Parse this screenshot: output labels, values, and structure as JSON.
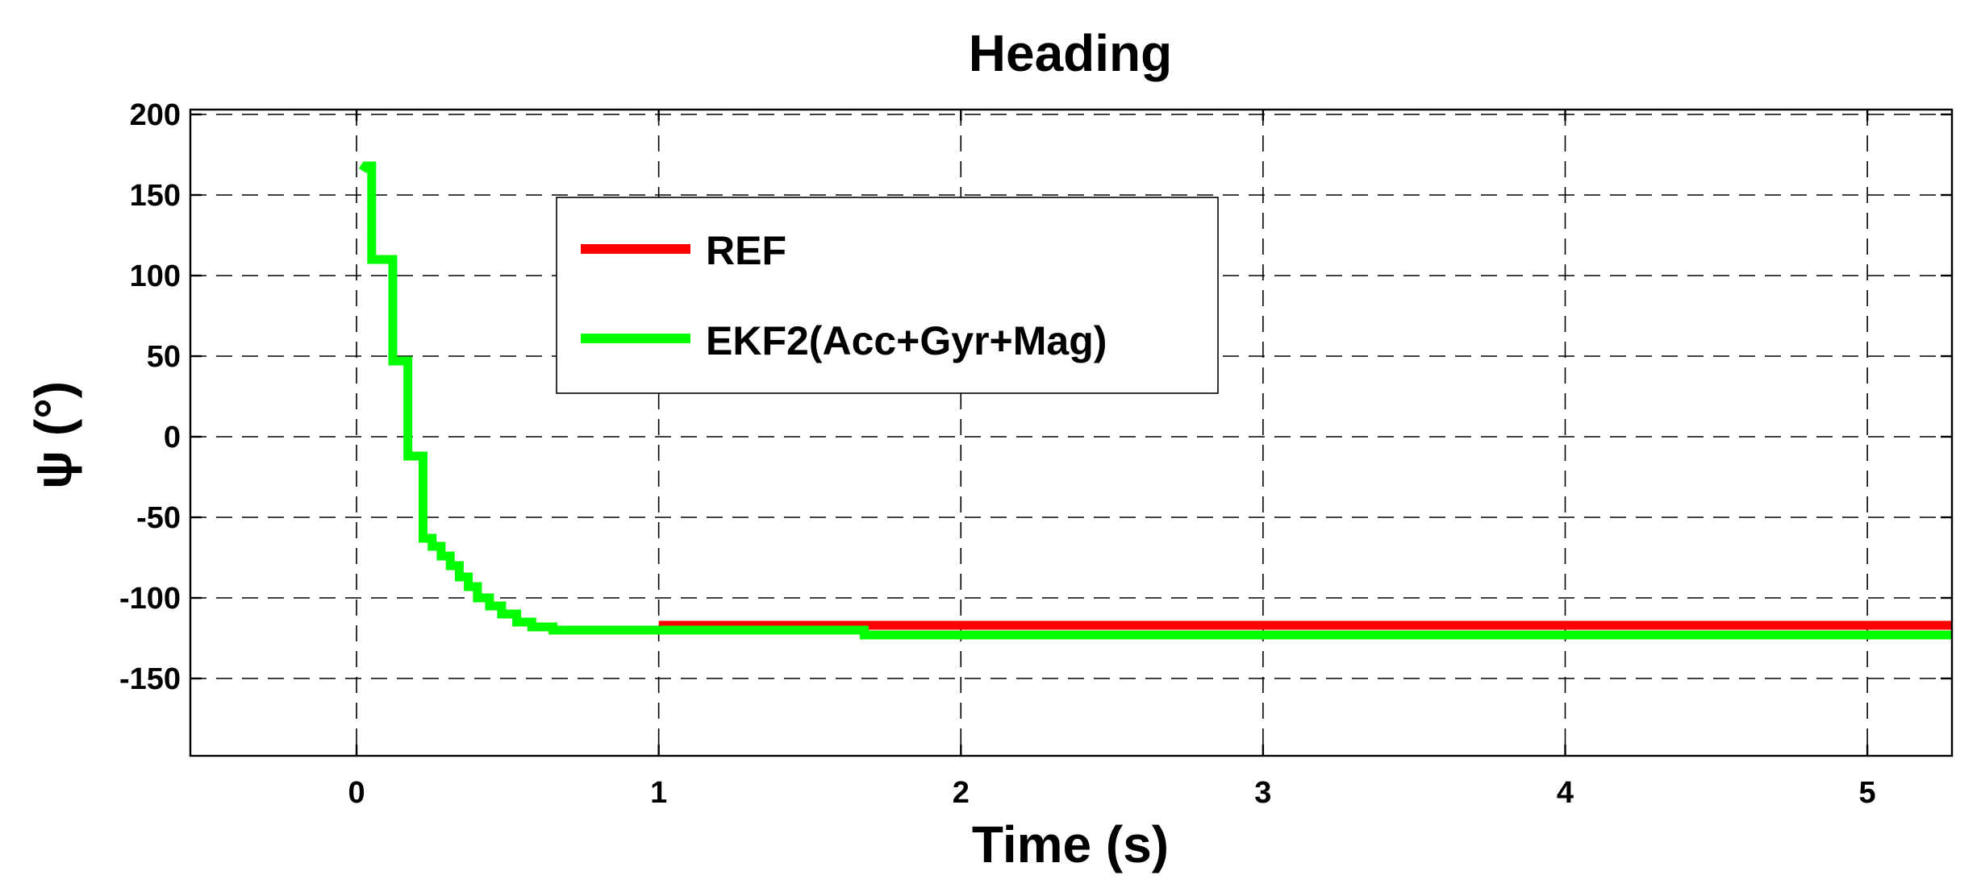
{
  "chart_data": {
    "type": "line",
    "title": "Heading",
    "xlabel": "Time (s)",
    "ylabel": "ψ (°)",
    "xlim": [
      -0.55,
      5.28
    ],
    "ylim": [
      -198,
      203
    ],
    "xticks": [
      0,
      1,
      2,
      3,
      4,
      5
    ],
    "yticks": [
      200,
      150,
      100,
      50,
      0,
      -50,
      -100,
      -150
    ],
    "grid": true,
    "legend_position": "top-center",
    "series": [
      {
        "name": "REF",
        "color": "#ff0000",
        "x": [
          1.0,
          5.28
        ],
        "y": [
          -117,
          -117
        ]
      },
      {
        "name": "EKF2(Acc+Gyr+Mag)",
        "color": "#00ff00",
        "x": [
          0.02,
          0.03,
          0.05,
          0.05,
          0.12,
          0.12,
          0.17,
          0.17,
          0.22,
          0.22,
          0.25,
          0.25,
          0.28,
          0.28,
          0.31,
          0.31,
          0.34,
          0.34,
          0.37,
          0.37,
          0.4,
          0.4,
          0.44,
          0.44,
          0.48,
          0.48,
          0.53,
          0.53,
          0.58,
          0.58,
          0.65,
          0.65,
          0.75,
          1.0,
          1.5,
          1.68,
          1.68,
          2.5,
          5.28
        ],
        "y": [
          165,
          168,
          168,
          110,
          110,
          47,
          47,
          -12,
          -12,
          -63,
          -63,
          -68,
          -68,
          -74,
          -74,
          -80,
          -80,
          -87,
          -87,
          -93,
          -93,
          -100,
          -100,
          -105,
          -105,
          -110,
          -110,
          -115,
          -115,
          -118,
          -118,
          -120,
          -120,
          -120,
          -120,
          -120,
          -123,
          -123,
          -123
        ]
      }
    ]
  }
}
